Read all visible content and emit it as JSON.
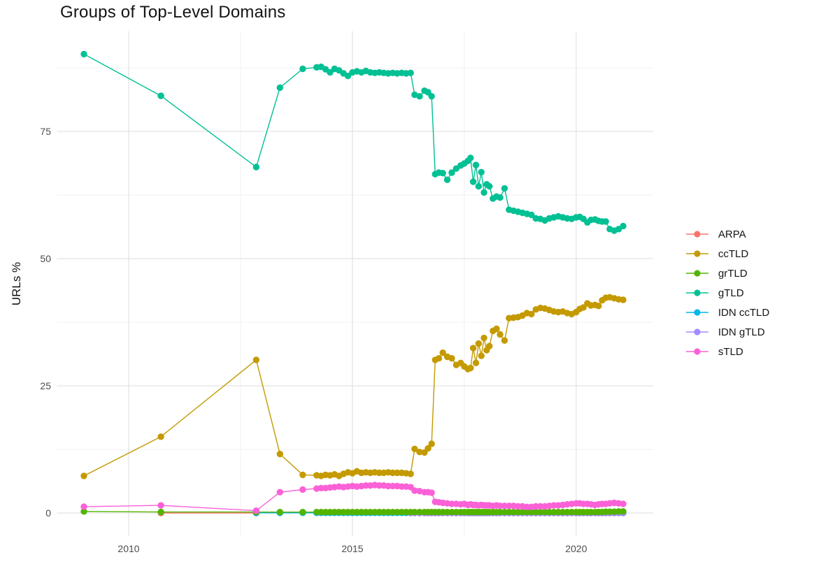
{
  "chart_data": {
    "type": "line",
    "title": "Groups of Top-Level Domains",
    "xlabel": "",
    "ylabel": "URLs %",
    "legend_position": "right",
    "grid": true,
    "xlim": [
      2008.4,
      2021.72
    ],
    "ylim": [
      -4.6,
      94.7
    ],
    "x_ticks": [
      {
        "v": 2010,
        "label": "2010"
      },
      {
        "v": 2015,
        "label": "2015"
      },
      {
        "v": 2020,
        "label": "2020"
      }
    ],
    "y_ticks": [
      {
        "v": 0,
        "label": "0"
      },
      {
        "v": 25,
        "label": "25"
      },
      {
        "v": 50,
        "label": "50"
      },
      {
        "v": 75,
        "label": "75"
      }
    ],
    "x_minor": [
      2012.5,
      2017.5
    ],
    "y_minor": [
      12.5,
      37.5,
      62.5,
      87.5
    ],
    "x_common": [
      2009.0,
      2010.72,
      2012.85,
      2013.38,
      2013.89,
      2014.2,
      2014.3,
      2014.4,
      2014.5,
      2014.6,
      2014.7,
      2014.8,
      2014.9,
      2015.0,
      2015.1,
      2015.2,
      2015.3,
      2015.4,
      2015.5,
      2015.6,
      2015.7,
      2015.8,
      2015.9,
      2016.0,
      2016.1,
      2016.2,
      2016.3,
      2016.39,
      2016.5,
      2016.61,
      2016.69,
      2016.77,
      2016.85,
      2016.93,
      2017.02,
      2017.12,
      2017.22,
      2017.32,
      2017.42,
      2017.5,
      2017.58,
      2017.64,
      2017.7,
      2017.76,
      2017.82,
      2017.88,
      2017.94,
      2018.0,
      2018.06,
      2018.14,
      2018.22,
      2018.3,
      2018.4,
      2018.5,
      2018.6,
      2018.7,
      2018.8,
      2018.9,
      2019.0,
      2019.1,
      2019.2,
      2019.3,
      2019.4,
      2019.5,
      2019.6,
      2019.7,
      2019.8,
      2019.9,
      2020.0,
      2020.08,
      2020.16,
      2020.25,
      2020.33,
      2020.42,
      2020.5,
      2020.58,
      2020.66,
      2020.75,
      2020.85,
      2020.95,
      2021.05
    ],
    "series": [
      {
        "name": "ARPA",
        "color": "#F8766D",
        "points": [
          [
            2010.72,
            0.0
          ],
          [
            2012.85,
            0.0
          ]
        ]
      },
      {
        "name": "ccTLD",
        "color": "#C49A00",
        "y": [
          7.3,
          15.0,
          30.1,
          11.6,
          7.5,
          7.4,
          7.3,
          7.5,
          7.4,
          7.6,
          7.3,
          7.7,
          8.0,
          7.8,
          8.2,
          7.9,
          8.0,
          7.9,
          8.0,
          7.9,
          7.9,
          8.0,
          7.9,
          7.9,
          7.9,
          7.8,
          7.7,
          12.6,
          12.0,
          11.9,
          12.7,
          13.6,
          30.1,
          30.4,
          31.5,
          30.7,
          30.4,
          29.1,
          29.5,
          28.8,
          28.3,
          28.5,
          32.4,
          29.5,
          33.3,
          30.9,
          34.4,
          32.0,
          32.8,
          35.8,
          36.2,
          35.1,
          33.9,
          38.3,
          38.4,
          38.5,
          38.8,
          39.3,
          39.1,
          40.0,
          40.3,
          40.2,
          39.9,
          39.6,
          39.5,
          39.6,
          39.3,
          39.1,
          39.5,
          40.1,
          40.4,
          41.2,
          40.8,
          40.9,
          40.7,
          41.8,
          42.3,
          42.4,
          42.2,
          42.0,
          41.9
        ]
      },
      {
        "name": "grTLD",
        "color": "#53B400",
        "y": [
          0.3,
          0.2,
          0.2,
          0.18,
          0.18,
          0.18,
          0.18,
          0.18,
          0.18,
          0.18,
          0.18,
          0.18,
          0.18,
          0.18,
          0.18,
          0.18,
          0.18,
          0.18,
          0.18,
          0.18,
          0.18,
          0.18,
          0.18,
          0.18,
          0.18,
          0.18,
          0.18,
          0.18,
          0.18,
          0.18,
          0.18,
          0.18,
          0.18,
          0.18,
          0.18,
          0.18,
          0.18,
          0.18,
          0.18,
          0.18,
          0.18,
          0.18,
          0.18,
          0.18,
          0.18,
          0.18,
          0.18,
          0.18,
          0.18,
          0.18,
          0.18,
          0.18,
          0.18,
          0.18,
          0.18,
          0.18,
          0.18,
          0.18,
          0.18,
          0.18,
          0.18,
          0.18,
          0.18,
          0.18,
          0.18,
          0.18,
          0.18,
          0.18,
          0.18,
          0.18,
          0.18,
          0.18,
          0.18,
          0.18,
          0.2,
          0.2,
          0.25,
          0.25,
          0.25,
          0.3,
          0.3,
          0.3,
          0.3
        ]
      },
      {
        "name": "gTLD",
        "color": "#00C094",
        "y": [
          90.2,
          82.0,
          68.0,
          83.6,
          87.3,
          87.6,
          87.7,
          87.2,
          86.6,
          87.3,
          87.0,
          86.4,
          85.9,
          86.6,
          86.8,
          86.6,
          86.9,
          86.6,
          86.5,
          86.6,
          86.5,
          86.4,
          86.5,
          86.4,
          86.5,
          86.4,
          86.5,
          82.2,
          81.9,
          83.0,
          82.7,
          81.9,
          66.6,
          66.9,
          66.8,
          65.5,
          66.9,
          67.7,
          68.3,
          68.7,
          69.2,
          69.8,
          65.1,
          68.4,
          64.2,
          67.0,
          63.0,
          64.6,
          64.2,
          61.8,
          62.2,
          62.0,
          63.8,
          59.6,
          59.4,
          59.2,
          59.0,
          58.8,
          58.6,
          57.9,
          57.8,
          57.5,
          57.9,
          58.1,
          58.3,
          58.1,
          57.9,
          57.8,
          58.1,
          58.2,
          57.8,
          57.1,
          57.6,
          57.7,
          57.4,
          57.3,
          57.3,
          55.8,
          55.5,
          55.8,
          56.4
        ]
      },
      {
        "name": "IDN ccTLD",
        "color": "#00B6EB",
        "x_from": 2012.85,
        "y_const": 0.03
      },
      {
        "name": "IDN gTLD",
        "color": "#A58AFF",
        "x_from": 2016.3,
        "y_const": 0.0
      },
      {
        "name": "sTLD",
        "color": "#FB61D7",
        "y": [
          1.25,
          1.5,
          0.45,
          4.1,
          4.6,
          4.8,
          4.9,
          4.9,
          5.0,
          5.1,
          5.2,
          5.1,
          5.2,
          5.3,
          5.2,
          5.3,
          5.4,
          5.4,
          5.5,
          5.4,
          5.4,
          5.3,
          5.3,
          5.3,
          5.2,
          5.2,
          5.1,
          4.4,
          4.3,
          4.1,
          4.1,
          4.0,
          2.2,
          2.1,
          2.0,
          1.9,
          1.8,
          1.8,
          1.7,
          1.8,
          1.6,
          1.7,
          1.6,
          1.6,
          1.5,
          1.6,
          1.5,
          1.5,
          1.5,
          1.4,
          1.5,
          1.4,
          1.4,
          1.4,
          1.4,
          1.3,
          1.3,
          1.2,
          1.2,
          1.3,
          1.3,
          1.3,
          1.4,
          1.5,
          1.5,
          1.6,
          1.7,
          1.8,
          1.9,
          1.9,
          1.8,
          1.8,
          1.7,
          1.6,
          1.7,
          1.8,
          1.8,
          1.9,
          2.0,
          1.9,
          1.8
        ]
      }
    ],
    "draw_order": [
      "ARPA",
      "IDN ccTLD",
      "IDN gTLD",
      "grTLD",
      "ccTLD",
      "gTLD",
      "sTLD"
    ],
    "style": {
      "major_grid_color": "#E4E4E4",
      "minor_grid_color": "#EFEFEF",
      "tick_text_color": "#4d4d4d",
      "title_color": "#141414",
      "point_radius": 4.7,
      "line_width": 1.4
    }
  }
}
